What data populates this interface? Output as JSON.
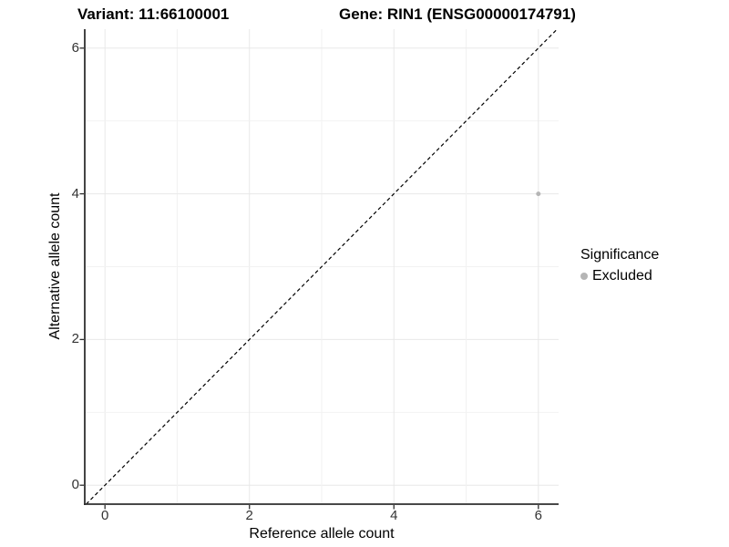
{
  "figure": {
    "title_variant": "Variant: 11:66100001",
    "title_gene": "Gene: RIN1 (ENSG00000174791)"
  },
  "axes": {
    "x_label": "Reference allele count",
    "y_label": "Alternative allele count"
  },
  "legend": {
    "title": "Significance",
    "items": [
      {
        "label": "Excluded",
        "color": "#b5b5b5"
      }
    ]
  },
  "colors": {
    "background": "#ffffff",
    "grid_major": "#e8e8e8",
    "grid_minor": "#f2f2f2",
    "axis_line": "#2f2f2f",
    "tick_label": "#333333",
    "reference_line": "#000000",
    "point_excluded": "#b5b5b5"
  },
  "chart_data": {
    "type": "scatter",
    "titles": [
      "Variant: 11:66100001",
      "Gene: RIN1 (ENSG00000174791)"
    ],
    "xlabel": "Reference allele count",
    "ylabel": "Alternative allele count",
    "xlim": [
      -0.28,
      6.28
    ],
    "ylim": [
      -0.26,
      6.26
    ],
    "x_ticks": [
      0,
      2,
      4,
      6
    ],
    "y_ticks": [
      0,
      2,
      4,
      6
    ],
    "grid_values": [
      0,
      1,
      2,
      3,
      4,
      5,
      6
    ],
    "grid": true,
    "legend_position": "right",
    "series": [
      {
        "name": "Excluded",
        "color": "#b5b5b5",
        "point_radius": 2.5,
        "points": [
          {
            "x": 6,
            "y": 4
          }
        ]
      }
    ],
    "reference_line": {
      "type": "identity y=x",
      "style": "dashed",
      "color": "#000000",
      "dash": "4 3"
    }
  }
}
